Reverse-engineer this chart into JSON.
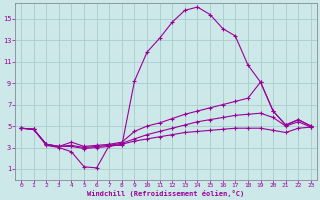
{
  "xlabel": "Windchill (Refroidissement éolien,°C)",
  "background_color": "#cde8e8",
  "grid_color": "#aacccc",
  "line_color": "#990099",
  "xlim": [
    -0.5,
    23.5
  ],
  "ylim": [
    0,
    16.5
  ],
  "xticks": [
    0,
    1,
    2,
    3,
    4,
    5,
    6,
    7,
    8,
    9,
    10,
    11,
    12,
    13,
    14,
    15,
    16,
    17,
    18,
    19,
    20,
    21,
    22,
    23
  ],
  "yticks": [
    1,
    3,
    5,
    7,
    9,
    11,
    13,
    15
  ],
  "line1_x": [
    0,
    1,
    2,
    3,
    4,
    5,
    6,
    7,
    8,
    9,
    10,
    11,
    12,
    13,
    14,
    15,
    16,
    17,
    18,
    19,
    20,
    21,
    22,
    23
  ],
  "line1_y": [
    4.8,
    4.7,
    3.2,
    3.0,
    2.6,
    1.2,
    1.1,
    3.2,
    3.2,
    9.2,
    11.9,
    13.2,
    14.7,
    15.8,
    16.1,
    15.4,
    14.1,
    13.4,
    10.7,
    9.1,
    6.4,
    5.1,
    5.6,
    5.0
  ],
  "line2_x": [
    0,
    1,
    2,
    3,
    4,
    5,
    6,
    7,
    8,
    9,
    10,
    11,
    12,
    13,
    14,
    15,
    16,
    17,
    18,
    19,
    20,
    21,
    22,
    23
  ],
  "line2_y": [
    4.8,
    4.7,
    3.3,
    3.1,
    3.5,
    3.1,
    3.2,
    3.3,
    3.5,
    4.5,
    5.0,
    5.3,
    5.7,
    6.1,
    6.4,
    6.7,
    7.0,
    7.3,
    7.6,
    9.1,
    6.4,
    5.1,
    5.6,
    5.0
  ],
  "line3_x": [
    0,
    1,
    2,
    3,
    4,
    5,
    6,
    7,
    8,
    9,
    10,
    11,
    12,
    13,
    14,
    15,
    16,
    17,
    18,
    19,
    20,
    21,
    22,
    23
  ],
  "line3_y": [
    4.8,
    4.7,
    3.3,
    3.1,
    3.2,
    3.0,
    3.1,
    3.2,
    3.4,
    3.8,
    4.2,
    4.5,
    4.8,
    5.1,
    5.4,
    5.6,
    5.8,
    6.0,
    6.1,
    6.2,
    5.8,
    5.0,
    5.4,
    4.9
  ],
  "line4_x": [
    0,
    1,
    2,
    3,
    4,
    5,
    6,
    7,
    8,
    9,
    10,
    11,
    12,
    13,
    14,
    15,
    16,
    17,
    18,
    19,
    20,
    21,
    22,
    23
  ],
  "line4_y": [
    4.8,
    4.7,
    3.3,
    3.1,
    3.1,
    2.9,
    3.0,
    3.1,
    3.3,
    3.6,
    3.8,
    4.0,
    4.2,
    4.4,
    4.5,
    4.6,
    4.7,
    4.8,
    4.8,
    4.8,
    4.6,
    4.4,
    4.8,
    4.9
  ]
}
